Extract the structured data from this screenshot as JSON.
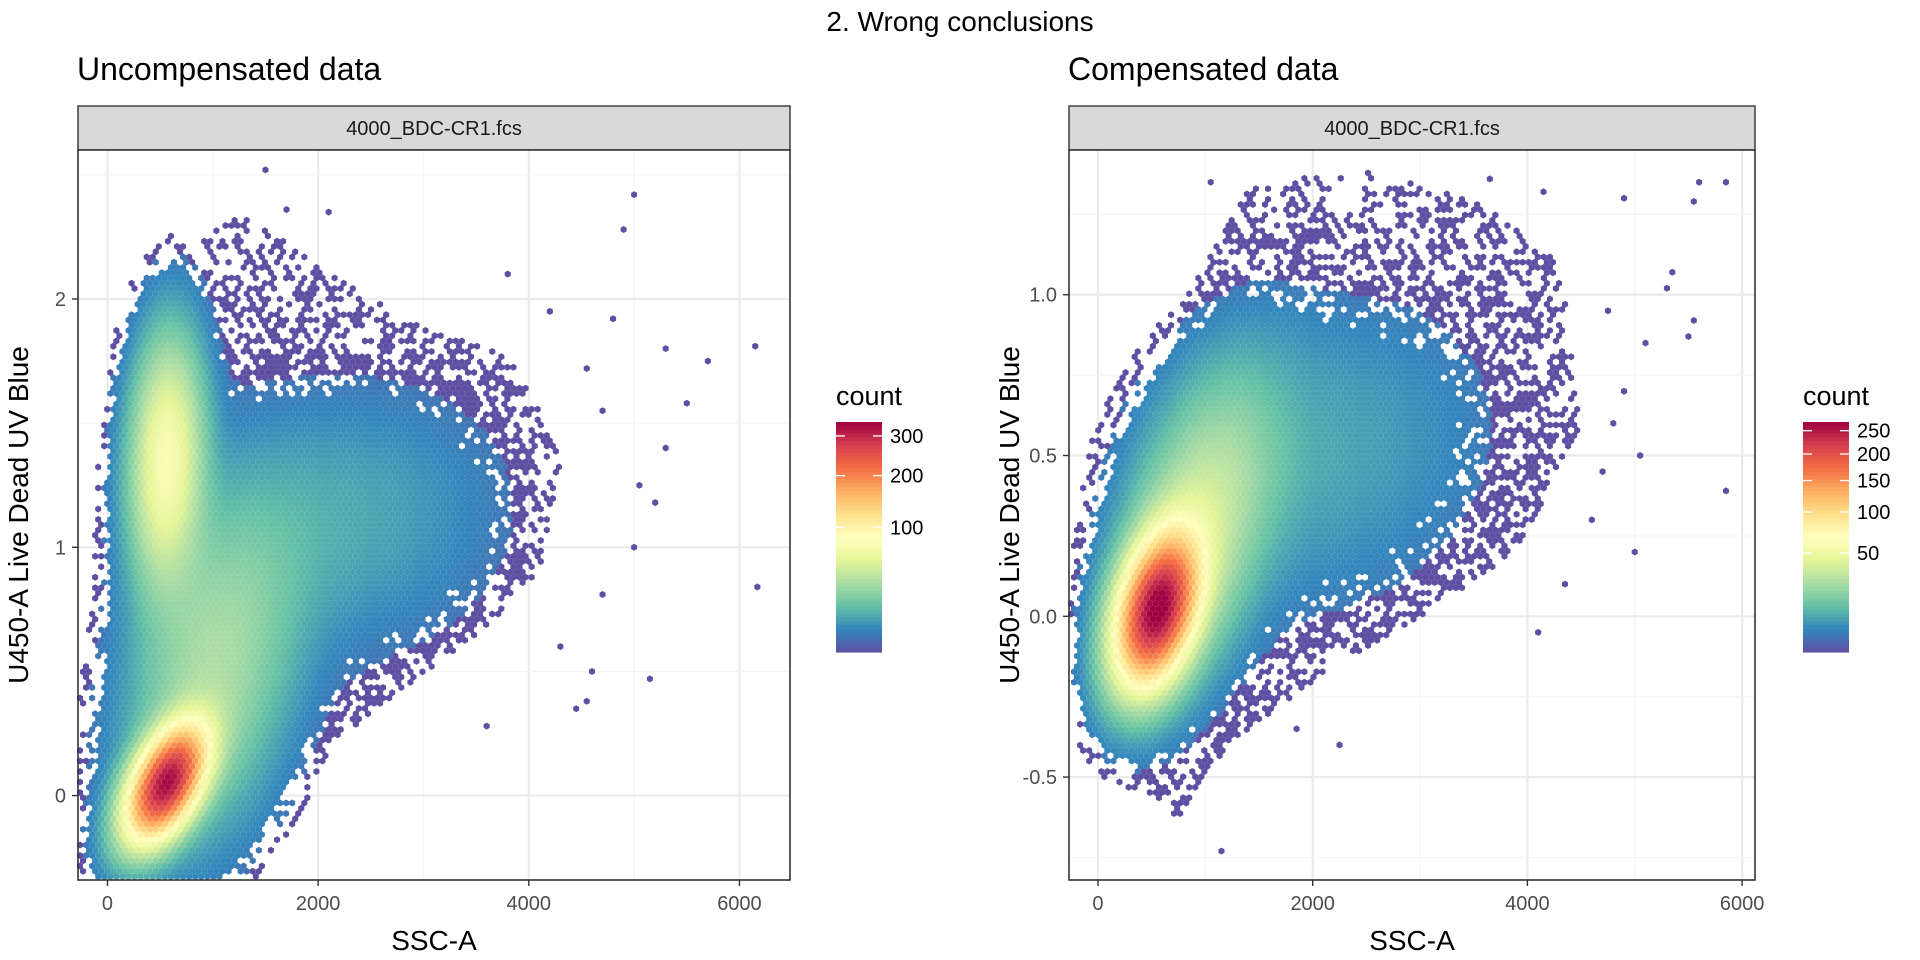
{
  "figure": {
    "title": "2. Wrong conclusions"
  },
  "colors": {
    "panel_bg": "#ffffff",
    "grid_major": "#ebebeb",
    "grid_minor": "#f5f5f5",
    "border": "#333333",
    "strip_bg": "#d9d9d9",
    "tick_text": "#4d4d4d",
    "low_density": "#5e4fa2",
    "palette": [
      "#5e4fa2",
      "#3288bd",
      "#66c2a5",
      "#abdda4",
      "#e6f598",
      "#ffffbf",
      "#fee08b",
      "#fdae61",
      "#f46d43",
      "#d53e4f",
      "#9e0142"
    ]
  },
  "chart_data": [
    {
      "type": "scatter",
      "subtype": "hexbin-density",
      "title": "Uncompensated data",
      "strip_label": "4000_BDC-CR1.fcs",
      "xlabel": "SSC-A",
      "ylabel": "U450-A Live Dead UV Blue",
      "xlim": [
        -280,
        6480
      ],
      "ylim": [
        -0.34,
        2.6
      ],
      "x_ticks": [
        0,
        2000,
        4000,
        6000
      ],
      "x_tick_labels": [
        "0",
        "2000",
        "4000",
        "6000"
      ],
      "y_ticks": [
        0,
        1,
        2
      ],
      "y_tick_labels": [
        "0",
        "1",
        "2"
      ],
      "grid": true,
      "legend": {
        "title": "count",
        "placement": "right",
        "scale": "sqrt",
        "max": 340,
        "ticks": [
          100,
          200,
          300
        ],
        "tick_labels": [
          "100",
          "200",
          "300"
        ]
      },
      "clusters": [
        {
          "x": 560,
          "y": 0.05,
          "sx": 230,
          "sy": 0.14,
          "rho": 0.5,
          "peak": 320
        },
        {
          "x": 560,
          "y": 1.35,
          "sx": 210,
          "sy": 0.3,
          "rho": 0.1,
          "peak": 75
        },
        {
          "x": 1000,
          "y": 0.5,
          "sx": 480,
          "sy": 0.4,
          "rho": 0.3,
          "peak": 30
        },
        {
          "x": 2200,
          "y": 1.1,
          "sx": 900,
          "sy": 0.32,
          "rho": 0.1,
          "peak": 8
        }
      ],
      "cloud": [
        {
          "x": 150,
          "y": -0.18
        },
        {
          "x": 350,
          "y": 0.5
        },
        {
          "x": 250,
          "y": 1.5
        },
        {
          "x": 500,
          "y": 2.0
        },
        {
          "x": 900,
          "y": 2.25
        },
        {
          "x": 1300,
          "y": 2.35
        },
        {
          "x": 2100,
          "y": 2.1
        },
        {
          "x": 3000,
          "y": 1.9
        },
        {
          "x": 3900,
          "y": 1.75
        },
        {
          "x": 4300,
          "y": 1.35
        },
        {
          "x": 4100,
          "y": 0.9
        },
        {
          "x": 3500,
          "y": 0.65
        },
        {
          "x": 2700,
          "y": 0.4
        },
        {
          "x": 1800,
          "y": 0.1
        },
        {
          "x": 1300,
          "y": -0.08
        },
        {
          "x": 800,
          "y": -0.18
        }
      ],
      "outliers": [
        {
          "x": 1500,
          "y": 2.52
        },
        {
          "x": 1700,
          "y": 2.36
        },
        {
          "x": 2100,
          "y": 2.35
        },
        {
          "x": 5000,
          "y": 2.42
        },
        {
          "x": 4900,
          "y": 2.28
        },
        {
          "x": 4800,
          "y": 1.92
        },
        {
          "x": 5300,
          "y": 1.8
        },
        {
          "x": 5700,
          "y": 1.75
        },
        {
          "x": 6150,
          "y": 1.81
        },
        {
          "x": 5500,
          "y": 1.58
        },
        {
          "x": 5300,
          "y": 1.4
        },
        {
          "x": 5050,
          "y": 1.25
        },
        {
          "x": 5200,
          "y": 1.18
        },
        {
          "x": 6170,
          "y": 0.84
        },
        {
          "x": 4700,
          "y": 0.81
        },
        {
          "x": 5150,
          "y": 0.47
        },
        {
          "x": 4600,
          "y": 0.5
        },
        {
          "x": 4450,
          "y": 0.35
        },
        {
          "x": 4550,
          "y": 0.38
        },
        {
          "x": 3600,
          "y": 0.28
        },
        {
          "x": 4200,
          "y": 1.95
        },
        {
          "x": 4700,
          "y": 1.55
        },
        {
          "x": 4300,
          "y": 0.6
        },
        {
          "x": 3800,
          "y": 2.1
        },
        {
          "x": 4550,
          "y": 1.72
        },
        {
          "x": 5000,
          "y": 1.0
        }
      ]
    },
    {
      "type": "scatter",
      "subtype": "hexbin-density",
      "title": "Compensated data",
      "strip_label": "4000_BDC-CR1.fcs",
      "xlabel": "SSC-A",
      "ylabel": "U450-A Live Dead UV Blue",
      "xlim": [
        -270,
        6120
      ],
      "ylim": [
        -0.82,
        1.45
      ],
      "x_ticks": [
        0,
        2000,
        4000,
        6000
      ],
      "x_tick_labels": [
        "0",
        "2000",
        "4000",
        "6000"
      ],
      "y_ticks": [
        -0.5,
        0,
        0.5,
        1
      ],
      "y_tick_labels": [
        "-0.5",
        "0.0",
        "0.5",
        "1.0"
      ],
      "grid": true,
      "legend": {
        "title": "count",
        "placement": "right",
        "scale": "sqrt",
        "max": 270,
        "ticks": [
          50,
          100,
          150,
          200,
          250
        ],
        "tick_labels": [
          "50",
          "100",
          "150",
          "200",
          "250"
        ]
      },
      "clusters": [
        {
          "x": 550,
          "y": 0.02,
          "sx": 230,
          "sy": 0.14,
          "rho": 0.35,
          "peak": 260
        },
        {
          "x": 900,
          "y": 0.25,
          "sx": 420,
          "sy": 0.28,
          "rho": 0.45,
          "peak": 35
        },
        {
          "x": 2000,
          "y": 0.5,
          "sx": 1000,
          "sy": 0.3,
          "rho": 0.15,
          "peak": 6
        }
      ],
      "cloud": [
        {
          "x": 100,
          "y": -0.3
        },
        {
          "x": 150,
          "y": 0.15
        },
        {
          "x": 500,
          "y": 0.6
        },
        {
          "x": 900,
          "y": 1.05
        },
        {
          "x": 1400,
          "y": 1.35
        },
        {
          "x": 2500,
          "y": 1.38
        },
        {
          "x": 3500,
          "y": 1.3
        },
        {
          "x": 4300,
          "y": 1.1
        },
        {
          "x": 4500,
          "y": 0.6
        },
        {
          "x": 3900,
          "y": 0.2
        },
        {
          "x": 3000,
          "y": 0.0
        },
        {
          "x": 2000,
          "y": -0.2
        },
        {
          "x": 1200,
          "y": -0.4
        },
        {
          "x": 700,
          "y": -0.65
        },
        {
          "x": 400,
          "y": -0.55
        }
      ],
      "outliers": [
        {
          "x": 5600,
          "y": 1.35
        },
        {
          "x": 5850,
          "y": 1.35
        },
        {
          "x": 5550,
          "y": 1.29
        },
        {
          "x": 5350,
          "y": 1.07
        },
        {
          "x": 5300,
          "y": 1.02
        },
        {
          "x": 5550,
          "y": 0.92
        },
        {
          "x": 5500,
          "y": 0.87
        },
        {
          "x": 5850,
          "y": 0.39
        },
        {
          "x": 5050,
          "y": 0.5
        },
        {
          "x": 4900,
          "y": 0.7
        },
        {
          "x": 4800,
          "y": 0.6
        },
        {
          "x": 4700,
          "y": 0.45
        },
        {
          "x": 4350,
          "y": 0.1
        },
        {
          "x": 4100,
          "y": -0.05
        },
        {
          "x": 4750,
          "y": 0.95
        },
        {
          "x": 5100,
          "y": 0.85
        },
        {
          "x": 1150,
          "y": -0.73
        },
        {
          "x": 2250,
          "y": -0.4
        },
        {
          "x": 1850,
          "y": -0.35
        },
        {
          "x": 4900,
          "y": 1.3
        },
        {
          "x": 4150,
          "y": 1.32
        },
        {
          "x": 3650,
          "y": 1.36
        },
        {
          "x": 1050,
          "y": 1.35
        },
        {
          "x": 4600,
          "y": 0.3
        },
        {
          "x": 5000,
          "y": 0.2
        }
      ]
    }
  ]
}
